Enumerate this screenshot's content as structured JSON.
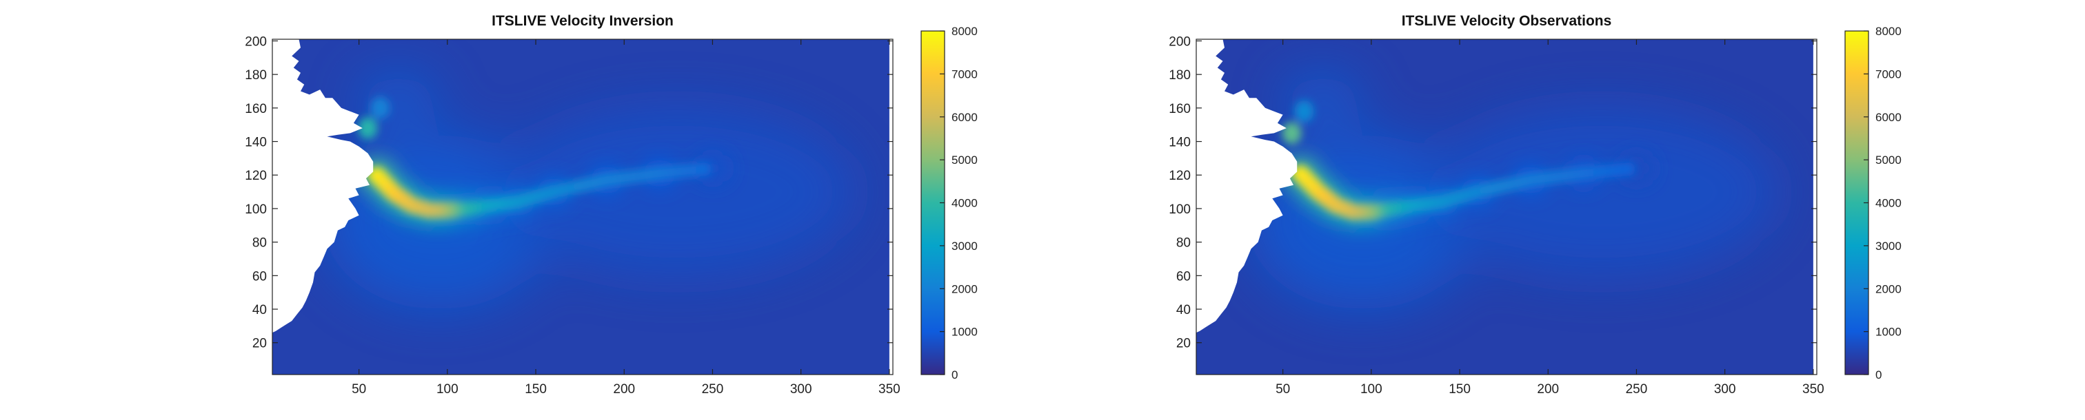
{
  "figure": {
    "colormap": "parula",
    "colors": {
      "parula": [
        "#352a87",
        "#0f5cdd",
        "#1481d6",
        "#06a4ca",
        "#2eb7a4",
        "#87bf77",
        "#d1bb59",
        "#fec832",
        "#f9fb0e"
      ],
      "land": "#ffffff",
      "axis": "#222222"
    }
  },
  "chart_data": [
    {
      "type": "heatmap",
      "title": "ITSLIVE Velocity Inversion",
      "xlabel": "",
      "ylabel": "",
      "xlim": [
        1,
        352
      ],
      "ylim": [
        1,
        201
      ],
      "xticks": [
        50,
        100,
        150,
        200,
        250,
        300,
        350
      ],
      "yticks": [
        20,
        40,
        60,
        80,
        100,
        120,
        140,
        160,
        180,
        200
      ],
      "clim": [
        0,
        8000
      ],
      "colorbar_ticks": [
        0,
        1000,
        2000,
        3000,
        4000,
        5000,
        6000,
        7000,
        8000
      ],
      "grid": false,
      "background_velocity": 450,
      "fast_flow_path": [
        {
          "x": 60,
          "y": 120,
          "v": 7700
        },
        {
          "x": 70,
          "y": 109,
          "v": 7200
        },
        {
          "x": 80,
          "y": 102,
          "v": 6600
        },
        {
          "x": 90,
          "y": 99,
          "v": 6200
        },
        {
          "x": 100,
          "y": 99,
          "v": 5800
        },
        {
          "x": 112,
          "y": 100,
          "v": 4000
        },
        {
          "x": 125,
          "y": 102,
          "v": 3100
        },
        {
          "x": 140,
          "y": 104,
          "v": 2700
        },
        {
          "x": 160,
          "y": 110,
          "v": 2300
        },
        {
          "x": 190,
          "y": 117,
          "v": 2000
        },
        {
          "x": 220,
          "y": 121,
          "v": 1800
        },
        {
          "x": 250,
          "y": 124,
          "v": 1400
        }
      ],
      "secondary_flow": [
        {
          "x": 55,
          "y": 148,
          "v": 3800
        },
        {
          "x": 62,
          "y": 160,
          "v": 2000
        }
      ]
    },
    {
      "type": "heatmap",
      "title": "ITSLIVE Velocity Observations",
      "xlabel": "",
      "ylabel": "",
      "xlim": [
        1,
        352
      ],
      "ylim": [
        1,
        201
      ],
      "xticks": [
        50,
        100,
        150,
        200,
        250,
        300,
        350
      ],
      "yticks": [
        20,
        40,
        60,
        80,
        100,
        120,
        140,
        160,
        180,
        200
      ],
      "clim": [
        0,
        8000
      ],
      "colorbar_ticks": [
        0,
        1000,
        2000,
        3000,
        4000,
        5000,
        6000,
        7000,
        8000
      ],
      "grid": false,
      "background_velocity": 420,
      "fast_flow_path": [
        {
          "x": 60,
          "y": 121,
          "v": 7600
        },
        {
          "x": 70,
          "y": 110,
          "v": 7300
        },
        {
          "x": 80,
          "y": 102,
          "v": 6700
        },
        {
          "x": 90,
          "y": 98,
          "v": 6300
        },
        {
          "x": 100,
          "y": 98,
          "v": 5600
        },
        {
          "x": 112,
          "y": 100,
          "v": 3800
        },
        {
          "x": 125,
          "y": 102,
          "v": 3000
        },
        {
          "x": 140,
          "y": 104,
          "v": 2600
        },
        {
          "x": 160,
          "y": 110,
          "v": 2200
        },
        {
          "x": 190,
          "y": 117,
          "v": 1900
        },
        {
          "x": 220,
          "y": 121,
          "v": 1600
        },
        {
          "x": 250,
          "y": 124,
          "v": 1200
        }
      ],
      "secondary_flow": [
        {
          "x": 55,
          "y": 145,
          "v": 4500
        },
        {
          "x": 62,
          "y": 158,
          "v": 2200
        }
      ]
    }
  ]
}
